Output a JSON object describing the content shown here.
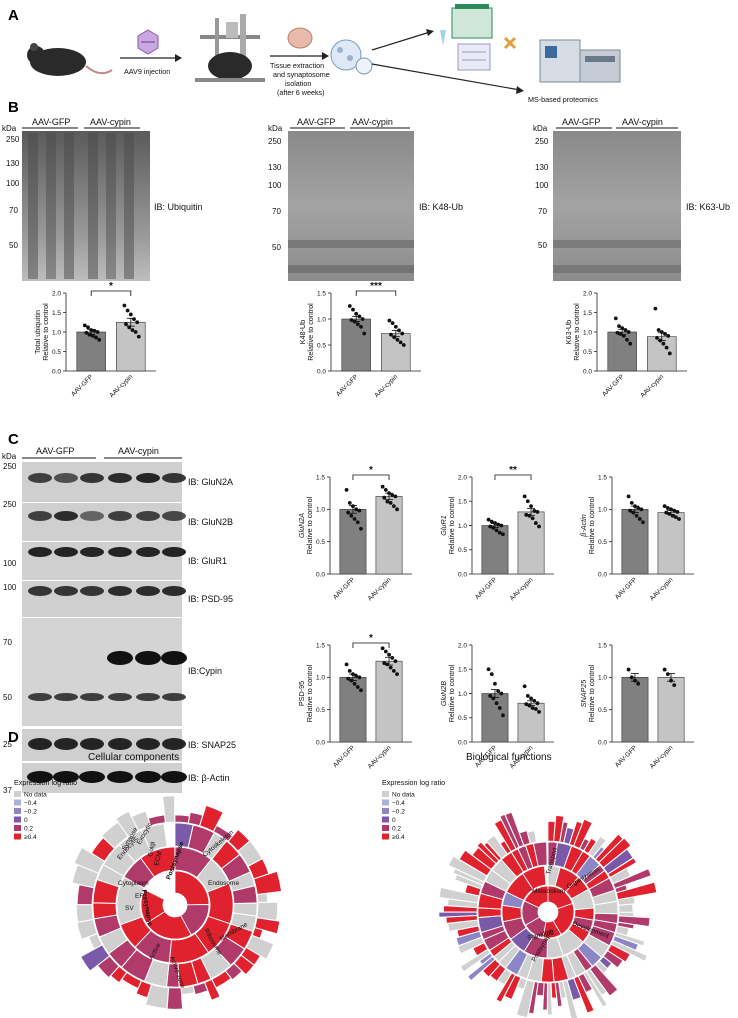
{
  "panels": {
    "A": {
      "label": "A",
      "steps": [
        "AAV9 injection",
        "Tissue extraction",
        "and synaptosome",
        "isolation",
        "(after 6 weeks)",
        "MS-based proteomics"
      ]
    },
    "B": {
      "label": "B",
      "groups": [
        "AAV-GFP",
        "AAV-cypin"
      ],
      "kda": "kDa",
      "blots": [
        {
          "ib": "IB: Ubiquitin",
          "markers": [
            "250",
            "130",
            "100",
            "70",
            "50"
          ]
        },
        {
          "ib": "IB: K48-Ub",
          "markers": [
            "250",
            "130",
            "100",
            "70",
            "50"
          ]
        },
        {
          "ib": "IB: K63-Ub",
          "markers": [
            "250",
            "130",
            "100",
            "70",
            "50"
          ]
        }
      ]
    },
    "C": {
      "label": "C",
      "groups": [
        "AAV-GFP",
        "AAV-cypin"
      ],
      "kda": "kDa",
      "blots": [
        {
          "ib": "IB: GluN2A",
          "marker": "250"
        },
        {
          "ib": "IB: GluN2B",
          "marker": "250"
        },
        {
          "ib": "IB: GluR1",
          "marker": "100"
        },
        {
          "ib": "IB: PSD-95",
          "marker": "100"
        },
        {
          "ib": "IB:Cypin",
          "markers": [
            "70",
            "50"
          ]
        },
        {
          "ib": "IB: SNAP25",
          "marker": "25"
        },
        {
          "ib": "IB: β-Actin",
          "marker": "37"
        }
      ]
    },
    "D": {
      "label": "D",
      "left_title": "Cellular components",
      "right_title": "Biological functions",
      "legend_title": "Expression log ratio",
      "legend": [
        {
          "label": "No data",
          "color": "#d0d0d0"
        },
        {
          "label": "−0.4",
          "color": "#a9b3d9"
        },
        {
          "label": "−0.2",
          "color": "#8c86c7"
        },
        {
          "label": "0",
          "color": "#7a5aa8"
        },
        {
          "label": "0.2",
          "color": "#b03a6a"
        },
        {
          "label": "≥0.4",
          "color": "#e0222e"
        }
      ],
      "cc_labels": [
        "Postsynapse",
        "Presynapse",
        "Cytoskeleton",
        "Endosome",
        "Membrane",
        "ER",
        "ECM",
        "Golgi",
        "Exocytic",
        "Synapse",
        "Endocytic",
        "Cytoplasm",
        "Ribosome",
        "Active zone",
        "Active",
        "SV"
      ],
      "bf_labels": [
        "Metabolism",
        "Transport",
        "Signaling",
        "Organization",
        "Development",
        "Postsynaptic"
      ]
    }
  },
  "chart_data": [
    {
      "type": "bar",
      "id": "b-total-ub",
      "categories": [
        "AAV-GFP",
        "AAV-cypin"
      ],
      "values": [
        1.0,
        1.25
      ],
      "errors": [
        0.06,
        0.1
      ],
      "ylabel": "Total ubiquitin\nRelative to control",
      "ylim": [
        0,
        2.0
      ],
      "yticks": [
        0.0,
        0.5,
        1.0,
        1.5,
        2.0
      ],
      "significance": "*",
      "points": [
        [
          1.17,
          1.12,
          1.05,
          1.03,
          1.0,
          0.98,
          0.93,
          0.9,
          0.86,
          0.8
        ],
        [
          1.68,
          1.55,
          1.45,
          1.33,
          1.25,
          1.2,
          1.12,
          1.05,
          1.0,
          0.88
        ]
      ]
    },
    {
      "type": "bar",
      "id": "b-k48",
      "categories": [
        "AAV-GFP",
        "AAV-cypin"
      ],
      "values": [
        1.0,
        0.72
      ],
      "errors": [
        0.05,
        0.06
      ],
      "ylabel": "K48-Ub\nRelative to control",
      "ylim": [
        0,
        1.5
      ],
      "yticks": [
        0.0,
        0.5,
        1.0,
        1.5
      ],
      "significance": "***",
      "points": [
        [
          1.25,
          1.18,
          1.1,
          1.05,
          1.0,
          0.98,
          0.95,
          0.9,
          0.85,
          0.72
        ],
        [
          0.97,
          0.92,
          0.85,
          0.78,
          0.72,
          0.7,
          0.65,
          0.6,
          0.55,
          0.5
        ]
      ]
    },
    {
      "type": "bar",
      "id": "b-k63",
      "categories": [
        "AAV-GFP",
        "AAV-cypin"
      ],
      "values": [
        1.0,
        0.88
      ],
      "errors": [
        0.07,
        0.1
      ],
      "ylabel": "K63-Ub\nRelative to control",
      "ylim": [
        0,
        2.0
      ],
      "yticks": [
        0.0,
        0.5,
        1.0,
        1.5,
        2.0
      ],
      "significance": "",
      "points": [
        [
          1.35,
          1.15,
          1.1,
          1.05,
          1.0,
          0.98,
          0.95,
          0.9,
          0.8,
          0.7
        ],
        [
          1.6,
          1.05,
          1.0,
          0.95,
          0.9,
          0.85,
          0.78,
          0.7,
          0.6,
          0.45
        ]
      ]
    },
    {
      "type": "bar",
      "id": "c-glun2a",
      "categories": [
        "AAV-GFP",
        "AAV-cypin"
      ],
      "values": [
        1.0,
        1.2
      ],
      "errors": [
        0.06,
        0.05
      ],
      "ylabel": "GluN2A\nRelative to control",
      "ylim": [
        0,
        1.5
      ],
      "yticks": [
        0.0,
        0.5,
        1.0,
        1.5
      ],
      "significance": "*",
      "points": [
        [
          1.3,
          1.1,
          1.05,
          1.0,
          0.98,
          0.95,
          0.9,
          0.85,
          0.8,
          0.7
        ],
        [
          1.35,
          1.3,
          1.25,
          1.22,
          1.2,
          1.18,
          1.12,
          1.1,
          1.05,
          1.0
        ]
      ]
    },
    {
      "type": "bar",
      "id": "c-glur1",
      "categories": [
        "AAV-GFP",
        "AAV-cypin"
      ],
      "values": [
        1.0,
        1.28
      ],
      "errors": [
        0.04,
        0.07
      ],
      "ylabel": "GluR1\nRelative to control",
      "ylim": [
        0,
        2.0
      ],
      "yticks": [
        0.0,
        0.5,
        1.0,
        1.5,
        2.0
      ],
      "significance": "**",
      "points": [
        [
          1.12,
          1.08,
          1.05,
          1.02,
          1.0,
          0.98,
          0.95,
          0.9,
          0.85,
          0.82
        ],
        [
          1.6,
          1.5,
          1.4,
          1.3,
          1.28,
          1.22,
          1.2,
          1.15,
          1.05,
          0.98
        ]
      ]
    },
    {
      "type": "bar",
      "id": "c-bactin",
      "categories": [
        "AAV-GFP",
        "AAV-cypin"
      ],
      "values": [
        1.0,
        0.95
      ],
      "errors": [
        0.05,
        0.03
      ],
      "ylabel": "β-Actin\nRelative to control",
      "ylim": [
        0,
        1.5
      ],
      "yticks": [
        0.0,
        0.5,
        1.0,
        1.5
      ],
      "significance": "",
      "points": [
        [
          1.2,
          1.1,
          1.05,
          1.02,
          1.0,
          0.98,
          0.95,
          0.9,
          0.85,
          0.8
        ],
        [
          1.05,
          1.02,
          1.0,
          0.98,
          0.96,
          0.95,
          0.93,
          0.9,
          0.88,
          0.85
        ]
      ]
    },
    {
      "type": "bar",
      "id": "c-psd95",
      "categories": [
        "AAV-GFP",
        "AAV-cypin"
      ],
      "values": [
        1.0,
        1.25
      ],
      "errors": [
        0.05,
        0.06
      ],
      "ylabel": "PSD-95\nRelative to control",
      "ylim": [
        0,
        1.5
      ],
      "yticks": [
        0.0,
        0.5,
        1.0,
        1.5
      ],
      "significance": "*",
      "points": [
        [
          1.2,
          1.1,
          1.05,
          1.02,
          1.0,
          0.98,
          0.95,
          0.9,
          0.85,
          0.8
        ],
        [
          1.45,
          1.4,
          1.35,
          1.3,
          1.25,
          1.22,
          1.2,
          1.15,
          1.1,
          1.05
        ]
      ]
    },
    {
      "type": "bar",
      "id": "c-glun2b",
      "categories": [
        "AAV-GFP",
        "AAV-cypin"
      ],
      "values": [
        1.0,
        0.8
      ],
      "errors": [
        0.08,
        0.05
      ],
      "ylabel": "GluN2B\nRelative to control",
      "ylim": [
        0,
        2.0
      ],
      "yticks": [
        0.0,
        0.5,
        1.0,
        1.5,
        2.0
      ],
      "significance": "",
      "points": [
        [
          1.5,
          1.4,
          1.2,
          1.05,
          1.0,
          0.95,
          0.9,
          0.8,
          0.7,
          0.55
        ],
        [
          1.15,
          0.95,
          0.9,
          0.85,
          0.8,
          0.78,
          0.75,
          0.7,
          0.68,
          0.62
        ]
      ]
    },
    {
      "type": "bar",
      "id": "c-snap25",
      "categories": [
        "AAV-GFP",
        "AAV-cypin"
      ],
      "values": [
        1.0,
        1.0
      ],
      "errors": [
        0.06,
        0.06
      ],
      "ylabel": "SNAP25\nRelative to control",
      "ylim": [
        0,
        1.5
      ],
      "yticks": [
        0.0,
        0.5,
        1.0,
        1.5
      ],
      "significance": "",
      "points": [
        [
          1.12,
          1.0,
          0.95,
          0.9
        ],
        [
          1.12,
          1.05,
          0.95,
          0.88
        ]
      ]
    }
  ]
}
